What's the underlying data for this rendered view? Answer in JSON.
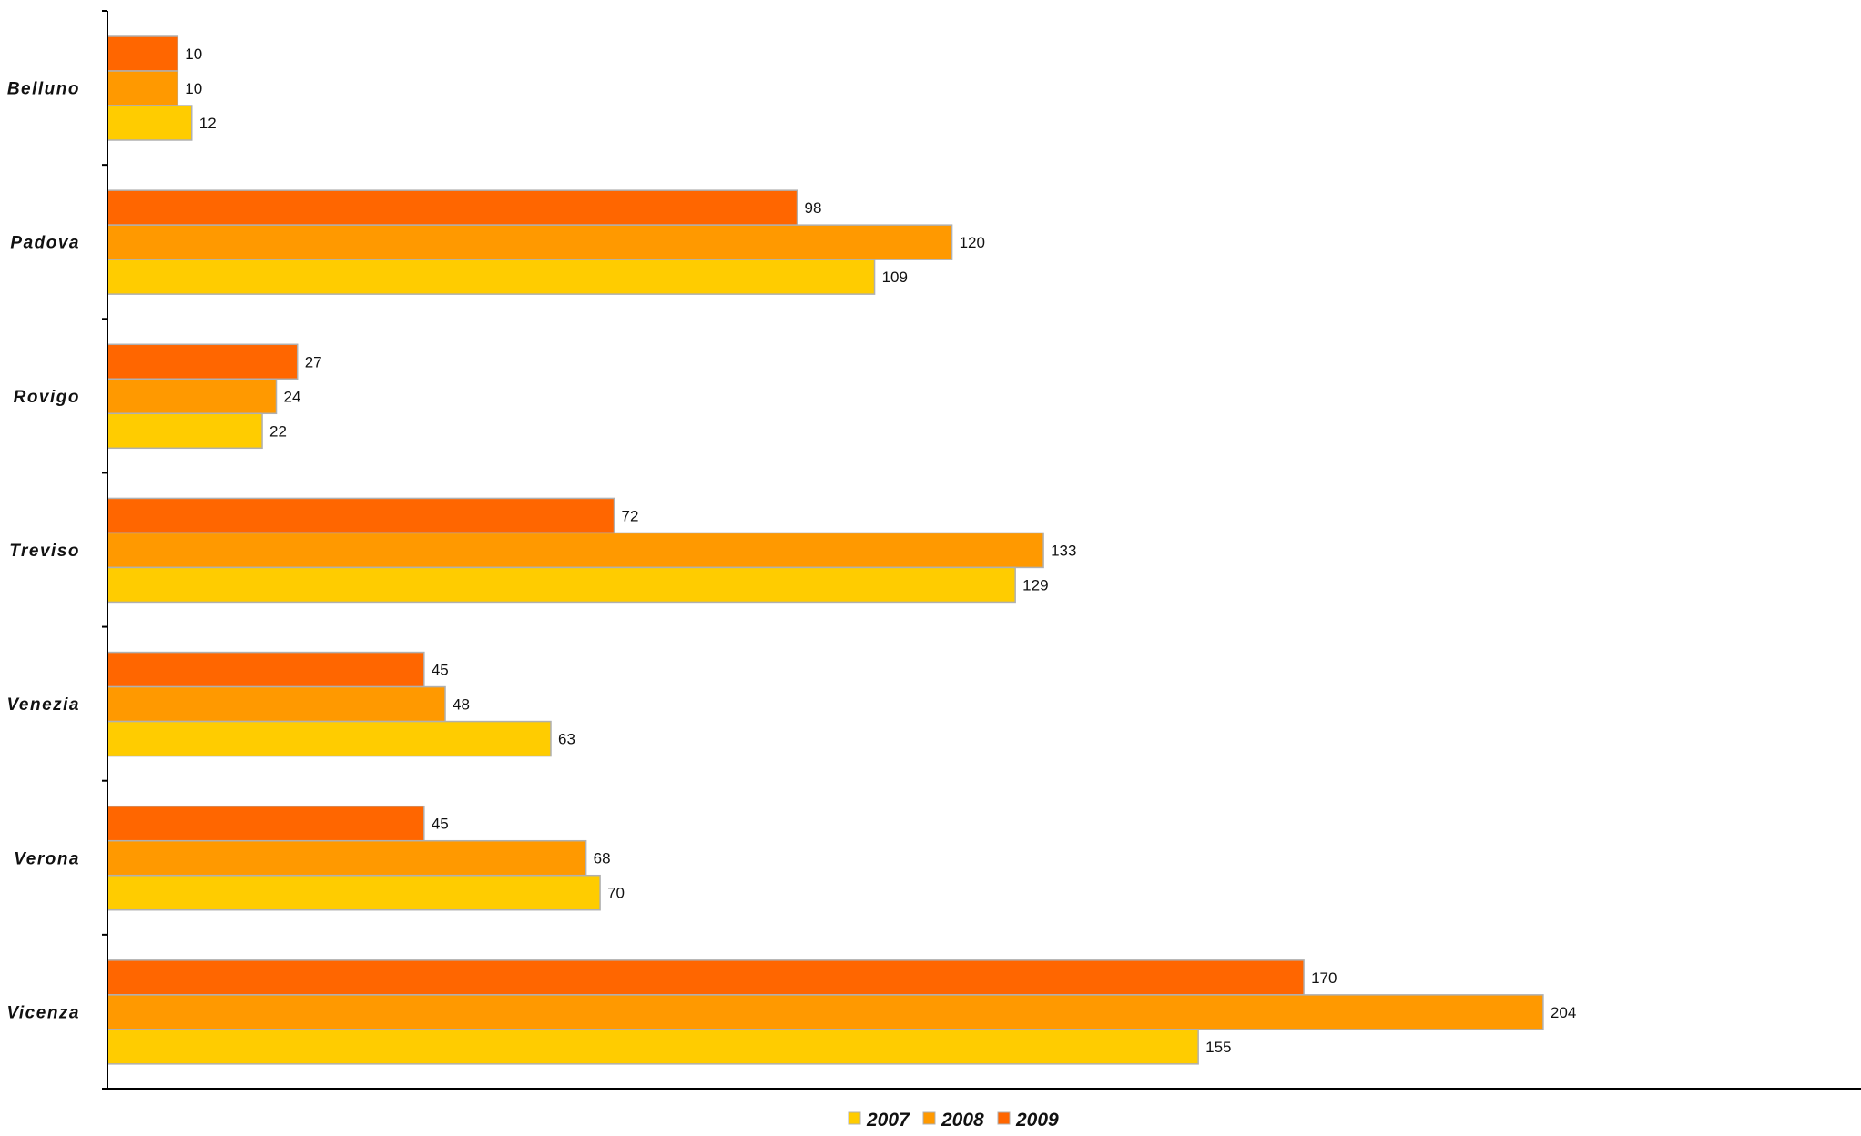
{
  "chart_data": {
    "type": "bar",
    "orientation": "horizontal",
    "categories": [
      "Belluno",
      "Padova",
      "Rovigo",
      "Treviso",
      "Venezia",
      "Verona",
      "Vicenza"
    ],
    "series": [
      {
        "name": "2009",
        "color": "#ff6600",
        "values": [
          10,
          98,
          27,
          72,
          45,
          45,
          170
        ]
      },
      {
        "name": "2008",
        "color": "#ff9900",
        "values": [
          10,
          120,
          24,
          133,
          48,
          68,
          204
        ]
      },
      {
        "name": "2007",
        "color": "#ffcc00",
        "values": [
          12,
          109,
          22,
          129,
          63,
          70,
          155
        ]
      }
    ],
    "legend": {
      "placement": "bottom",
      "order": [
        "2007",
        "2008",
        "2009"
      ]
    },
    "title": "",
    "xlabel": "",
    "ylabel": "",
    "xlim": [
      0,
      250
    ],
    "grid": false,
    "data_labels": true
  }
}
